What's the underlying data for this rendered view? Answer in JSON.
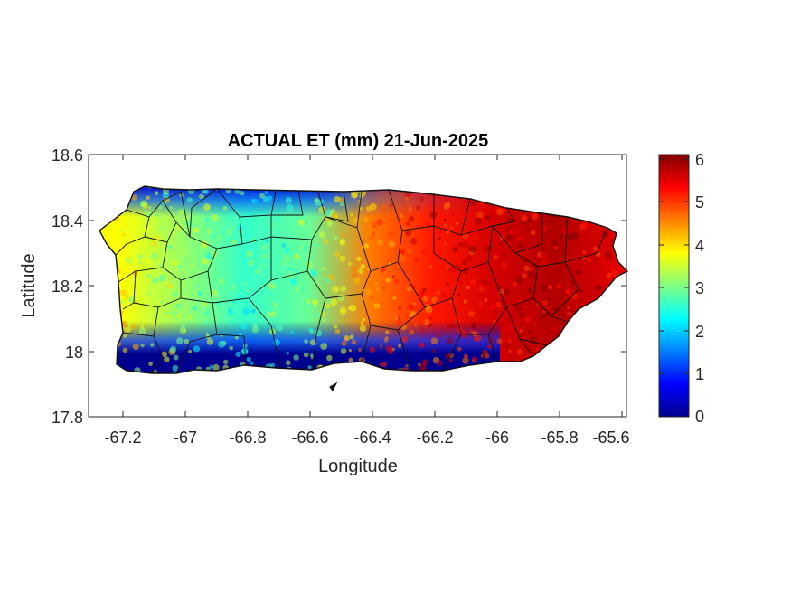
{
  "title": "ACTUAL ET (mm) 21-Jun-2025",
  "xlabel": "Longitude",
  "ylabel": "Latitude",
  "x_ticks": [
    "-67.2",
    "-67",
    "-66.8",
    "-66.6",
    "-66.4",
    "-66.2",
    "-66",
    "-65.8",
    "-65.6"
  ],
  "y_ticks": [
    "18.6",
    "18.4",
    "18.2",
    "18"
  ],
  "y_tick_bottom": "17.8",
  "colorbar_ticks": [
    "6",
    "5",
    "4",
    "3",
    "2",
    "1",
    "0"
  ],
  "chart_data": {
    "type": "heatmap",
    "title": "ACTUAL ET (mm) 21-Jun-2025",
    "xlabel": "Longitude",
    "ylabel": "Latitude",
    "xlim": [
      -67.3,
      -65.58
    ],
    "ylim": [
      17.8,
      18.6
    ],
    "colormap": "jet",
    "clim": [
      0,
      6.1
    ],
    "colorbar_ticks": [
      0,
      1,
      2,
      3,
      4,
      5,
      6
    ],
    "grid": false,
    "region": "Puerto Rico",
    "value_by_longitude_band": [
      {
        "lon": -67.2,
        "value": 3.8
      },
      {
        "lon": -67.0,
        "value": 3.2
      },
      {
        "lon": -66.8,
        "value": 2.6
      },
      {
        "lon": -66.6,
        "value": 2.9
      },
      {
        "lon": -66.4,
        "value": 4.6
      },
      {
        "lon": -66.2,
        "value": 5.2
      },
      {
        "lon": -66.0,
        "value": 5.6
      },
      {
        "lon": -65.8,
        "value": 5.8
      },
      {
        "lon": -65.6,
        "value": 5.5
      }
    ],
    "south_coast_value": 0.3,
    "north_coast_west_value": 0.8
  }
}
